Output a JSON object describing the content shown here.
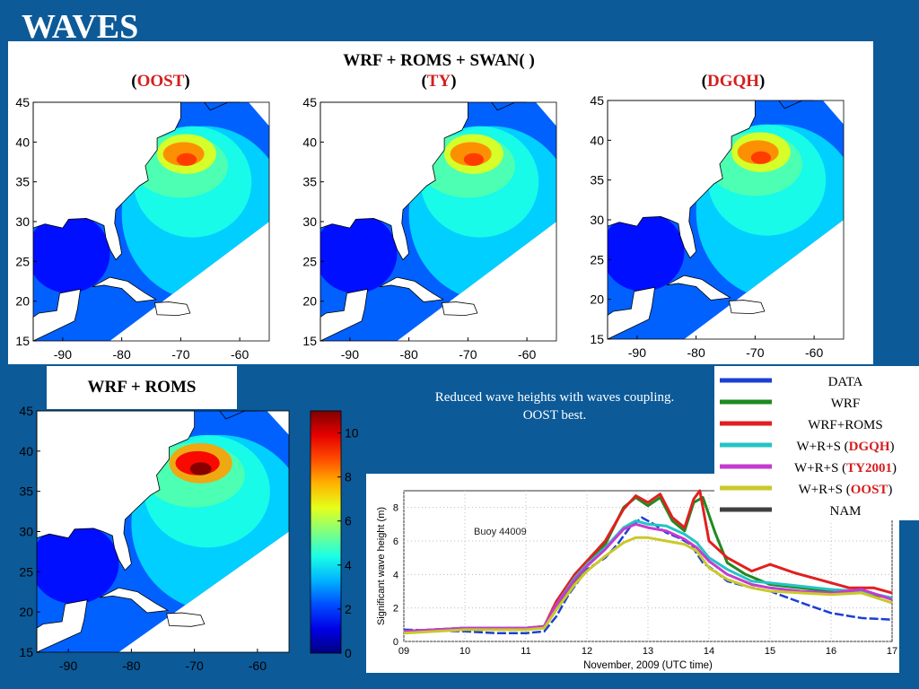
{
  "slide": {
    "title": "WAVES",
    "top_header": {
      "prefix": "WRF + ROMS + SWAN( )",
      "paren_open": "(",
      "paren_close": ")"
    },
    "maps": [
      {
        "name": "OOST",
        "name_color": "#d41f1f"
      },
      {
        "name": "TY",
        "name_color": "#d41f1f"
      },
      {
        "name": "DGQH",
        "name_color": "#d41f1f"
      }
    ],
    "bottom_map_label": "WRF + ROMS",
    "note": [
      "Reduced wave heights with waves coupling.",
      "OOST best."
    ]
  },
  "chart_data": [
    {
      "type": "heatmap",
      "x_ticks": [
        -90,
        -80,
        -70,
        -60
      ],
      "y_ticks": [
        45,
        40,
        35,
        30,
        25,
        20,
        15
      ],
      "xlim": [
        -95,
        -55
      ],
      "ylim": [
        15,
        45
      ]
    },
    {
      "type": "heatmap",
      "x_ticks": [
        -90,
        -80,
        -70,
        -60
      ],
      "y_ticks": [
        45,
        40,
        35,
        30,
        25,
        20,
        15
      ],
      "xlim": [
        -95,
        -55
      ],
      "ylim": [
        15,
        45
      ]
    },
    {
      "type": "heatmap",
      "x_ticks": [
        -90,
        -80,
        -70,
        -60
      ],
      "y_ticks": [
        45,
        40,
        35,
        30,
        25,
        20,
        15
      ],
      "xlim": [
        -95,
        -55
      ],
      "ylim": [
        15,
        45
      ]
    },
    {
      "type": "heatmap",
      "x_ticks": [
        -90,
        -80,
        -70,
        -60
      ],
      "y_ticks": [
        45,
        40,
        35,
        30,
        25,
        20,
        15
      ],
      "xlim": [
        -95,
        -55
      ],
      "ylim": [
        15,
        45
      ],
      "colorbar": {
        "ticks": [
          10,
          8,
          6,
          4,
          2,
          0
        ],
        "range": [
          0,
          11
        ]
      }
    },
    {
      "type": "line",
      "annotation": "Buoy 44009",
      "xlabel": "November, 2009 (UTC time)",
      "ylabel": "Significant wave height (m)",
      "xlim": [
        9,
        17
      ],
      "ylim": [
        0,
        9
      ],
      "x_ticks": [
        9,
        10,
        11,
        12,
        13,
        14,
        15,
        16,
        17
      ],
      "y_ticks": [
        0,
        2,
        4,
        6,
        8
      ],
      "grid": true,
      "legend_position": "top-right, outside plot",
      "series": [
        {
          "name": "DATA",
          "color": "#1a3fd6",
          "points": [
            [
              9,
              0.7
            ],
            [
              10,
              0.6
            ],
            [
              10.5,
              0.5
            ],
            [
              11,
              0.5
            ],
            [
              11.3,
              0.6
            ],
            [
              11.5,
              1.5
            ],
            [
              11.7,
              2.8
            ],
            [
              12,
              4.3
            ],
            [
              12.3,
              5.0
            ],
            [
              12.5,
              5.8
            ],
            [
              12.7,
              6.8
            ],
            [
              12.9,
              7.4
            ],
            [
              13.1,
              7.0
            ],
            [
              13.3,
              6.5
            ],
            [
              13.5,
              6.2
            ],
            [
              13.7,
              5.8
            ],
            [
              13.9,
              4.7
            ],
            [
              14.1,
              4.2
            ],
            [
              14.3,
              3.6
            ],
            [
              14.6,
              3.3
            ],
            [
              15,
              3.0
            ],
            [
              15.3,
              2.6
            ],
            [
              15.6,
              2.2
            ],
            [
              16,
              1.7
            ],
            [
              16.5,
              1.4
            ],
            [
              17,
              1.3
            ]
          ]
        },
        {
          "name": "WRF",
          "color": "#1f8a1f",
          "points": [
            [
              9,
              0.6
            ],
            [
              10,
              0.8
            ],
            [
              11,
              0.8
            ],
            [
              11.3,
              0.9
            ],
            [
              11.5,
              2.0
            ],
            [
              11.8,
              3.5
            ],
            [
              12,
              4.6
            ],
            [
              12.3,
              5.8
            ],
            [
              12.6,
              8.0
            ],
            [
              12.8,
              8.6
            ],
            [
              13,
              8.1
            ],
            [
              13.2,
              8.6
            ],
            [
              13.4,
              7.2
            ],
            [
              13.6,
              6.6
            ],
            [
              13.75,
              8.3
            ],
            [
              13.9,
              8.6
            ],
            [
              14.1,
              6.5
            ],
            [
              14.3,
              4.7
            ],
            [
              14.6,
              4.0
            ],
            [
              15,
              3.4
            ],
            [
              15.5,
              3.2
            ],
            [
              16,
              3.0
            ],
            [
              16.5,
              2.9
            ],
            [
              17,
              2.6
            ]
          ]
        },
        {
          "name": "WRF+ROMS",
          "color": "#e02020",
          "points": [
            [
              9,
              0.6
            ],
            [
              10,
              0.8
            ],
            [
              11,
              0.8
            ],
            [
              11.3,
              0.9
            ],
            [
              11.5,
              2.4
            ],
            [
              11.8,
              4.0
            ],
            [
              12,
              4.8
            ],
            [
              12.3,
              6.0
            ],
            [
              12.6,
              7.9
            ],
            [
              12.8,
              8.7
            ],
            [
              13,
              8.3
            ],
            [
              13.2,
              8.8
            ],
            [
              13.4,
              7.4
            ],
            [
              13.6,
              6.8
            ],
            [
              13.75,
              8.5
            ],
            [
              13.85,
              9.0
            ],
            [
              14,
              6.0
            ],
            [
              14.3,
              5.0
            ],
            [
              14.7,
              4.2
            ],
            [
              15,
              4.6
            ],
            [
              15.4,
              4.1
            ],
            [
              15.8,
              3.7
            ],
            [
              16.3,
              3.2
            ],
            [
              16.7,
              3.2
            ],
            [
              17,
              2.9
            ]
          ]
        },
        {
          "name": "W+R+S (DGQH)",
          "color": "#25c4c4",
          "points": [
            [
              9,
              0.6
            ],
            [
              10,
              0.8
            ],
            [
              11,
              0.8
            ],
            [
              11.3,
              0.9
            ],
            [
              11.5,
              2.2
            ],
            [
              11.8,
              3.8
            ],
            [
              12,
              4.6
            ],
            [
              12.3,
              5.6
            ],
            [
              12.6,
              6.8
            ],
            [
              12.8,
              7.2
            ],
            [
              13,
              7.0
            ],
            [
              13.3,
              6.9
            ],
            [
              13.6,
              6.4
            ],
            [
              13.8,
              5.9
            ],
            [
              14,
              5.0
            ],
            [
              14.3,
              4.3
            ],
            [
              14.7,
              3.6
            ],
            [
              15,
              3.5
            ],
            [
              15.5,
              3.3
            ],
            [
              16,
              3.1
            ],
            [
              16.5,
              3.0
            ],
            [
              17,
              2.6
            ]
          ]
        },
        {
          "name": "W+R+S (TY2001)",
          "color": "#c43bd0",
          "points": [
            [
              9,
              0.6
            ],
            [
              10,
              0.8
            ],
            [
              11,
              0.8
            ],
            [
              11.3,
              0.9
            ],
            [
              11.5,
              2.2
            ],
            [
              11.8,
              3.7
            ],
            [
              12,
              4.5
            ],
            [
              12.3,
              5.5
            ],
            [
              12.6,
              6.7
            ],
            [
              12.8,
              7.0
            ],
            [
              13,
              6.8
            ],
            [
              13.3,
              6.6
            ],
            [
              13.6,
              6.1
            ],
            [
              13.8,
              5.6
            ],
            [
              14,
              4.8
            ],
            [
              14.3,
              4.0
            ],
            [
              14.7,
              3.4
            ],
            [
              15,
              3.2
            ],
            [
              15.5,
              3.0
            ],
            [
              16,
              2.9
            ],
            [
              16.5,
              3.1
            ],
            [
              17,
              2.5
            ]
          ]
        },
        {
          "name": "W+R+S (OOST)",
          "color": "#c9c92a",
          "points": [
            [
              9,
              0.5
            ],
            [
              10,
              0.7
            ],
            [
              11,
              0.7
            ],
            [
              11.3,
              0.8
            ],
            [
              11.5,
              1.9
            ],
            [
              11.8,
              3.4
            ],
            [
              12,
              4.2
            ],
            [
              12.3,
              5.1
            ],
            [
              12.6,
              5.9
            ],
            [
              12.8,
              6.2
            ],
            [
              13,
              6.2
            ],
            [
              13.3,
              6.0
            ],
            [
              13.6,
              5.8
            ],
            [
              13.8,
              5.4
            ],
            [
              14,
              4.4
            ],
            [
              14.3,
              3.7
            ],
            [
              14.7,
              3.2
            ],
            [
              15,
              3.0
            ],
            [
              15.5,
              2.9
            ],
            [
              16,
              2.8
            ],
            [
              16.5,
              2.9
            ],
            [
              17,
              2.3
            ]
          ]
        },
        {
          "name": "NAM",
          "color": "#404040",
          "points": []
        }
      ]
    }
  ]
}
